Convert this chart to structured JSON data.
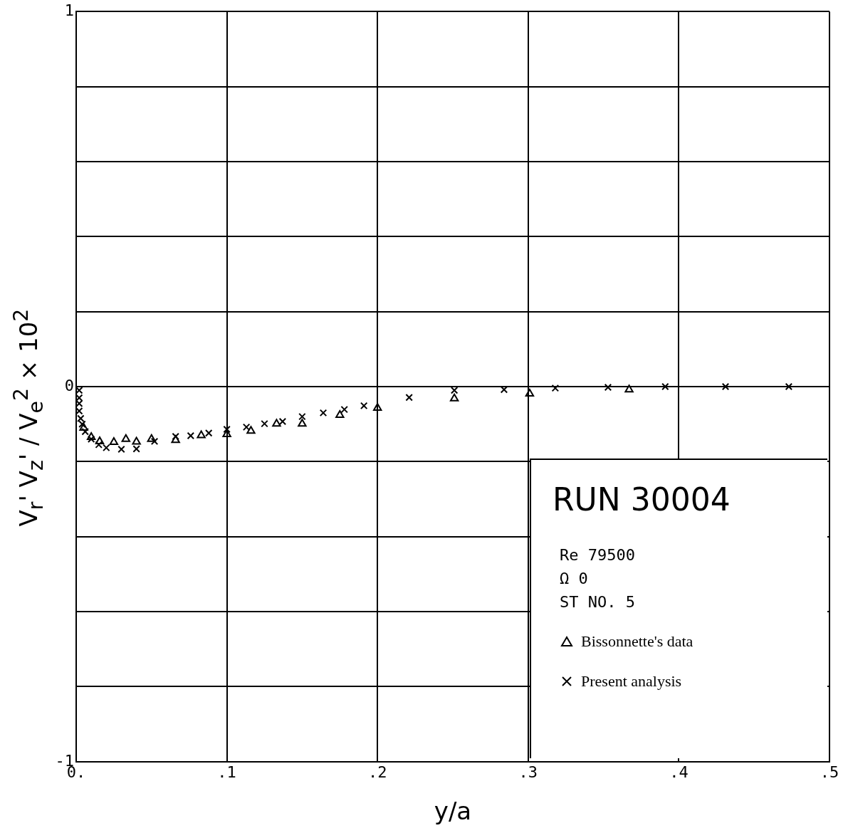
{
  "chart_data": {
    "type": "scatter",
    "xlabel": "y/a",
    "ylabel": "V$_{r}$' V$_{z}$' / V$_{e}$$^{2}$ × 10$^{2}$",
    "xlim": [
      0,
      0.5
    ],
    "ylim": [
      -1,
      1
    ],
    "xticks": [
      {
        "value": 0,
        "label": "0."
      },
      {
        "value": 0.1,
        "label": ".1"
      },
      {
        "value": 0.2,
        "label": ".2"
      },
      {
        "value": 0.3,
        "label": ".3"
      },
      {
        "value": 0.4,
        "label": ".4"
      },
      {
        "value": 0.5,
        "label": ".5"
      }
    ],
    "yticks": [
      {
        "value": -1,
        "label": "-1"
      },
      {
        "value": -0.8,
        "label": null
      },
      {
        "value": -0.6,
        "label": null
      },
      {
        "value": -0.4,
        "label": null
      },
      {
        "value": -0.2,
        "label": null
      },
      0,
      {
        "value": 0.2,
        "label": null
      },
      {
        "value": 0.4,
        "label": null
      },
      {
        "value": 0.6,
        "label": null
      },
      {
        "value": 0.8,
        "label": null
      },
      1
    ],
    "grid": true,
    "legend": "bottom right",
    "annotations": [
      "RUN 30004",
      "Re  79500",
      "Ω  0",
      "ST NO. 5"
    ],
    "series": [
      {
        "name": "Bissonnette's data",
        "color": "#000000",
        "marker": "triangle",
        "x": [
          0.005,
          0.01,
          0.0156,
          0.025,
          0.033,
          0.04,
          0.05,
          0.066,
          0.083,
          0.1,
          0.116,
          0.133,
          0.15,
          0.175,
          0.2,
          0.251,
          0.301,
          0.367
        ],
        "values": [
          -0.11,
          -0.135,
          -0.146,
          -0.148,
          -0.14,
          -0.147,
          -0.14,
          -0.143,
          -0.13,
          -0.127,
          -0.118,
          -0.099,
          -0.099,
          -0.076,
          -0.057,
          -0.032,
          -0.019,
          -0.008
        ]
      },
      {
        "name": "Present analysis",
        "color": "#000000",
        "marker": "cross",
        "x": [
          0.002,
          0.002,
          0.002,
          0.002,
          0.003,
          0.004,
          0.006,
          0.01,
          0.015,
          0.02,
          0.03,
          0.04,
          0.052,
          0.066,
          0.076,
          0.088,
          0.1,
          0.113,
          0.125,
          0.137,
          0.15,
          0.164,
          0.178,
          0.191,
          0.221,
          0.251,
          0.284,
          0.318,
          0.353,
          0.391,
          0.431,
          0.473
        ],
        "values": [
          -0.01,
          -0.03,
          -0.045,
          -0.065,
          -0.085,
          -0.1,
          -0.12,
          -0.14,
          -0.155,
          -0.163,
          -0.167,
          -0.166,
          -0.146,
          -0.133,
          -0.131,
          -0.124,
          -0.114,
          -0.108,
          -0.099,
          -0.093,
          -0.08,
          -0.07,
          -0.061,
          -0.051,
          -0.029,
          -0.01,
          -0.008,
          -0.004,
          -0.002,
          0,
          0,
          0
        ]
      }
    ]
  }
}
